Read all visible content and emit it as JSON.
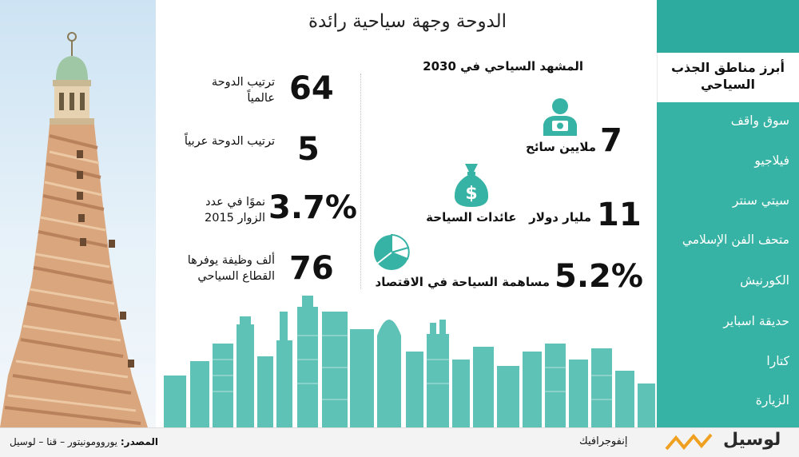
{
  "title": "الدوحة وجهة سياحية رائدة",
  "subtitle": "المشهد السياحي في 2030",
  "left_stats": [
    {
      "number": "64",
      "label": "ترتيب الدوحة عالمياً"
    },
    {
      "number": "5",
      "label": "ترتيب الدوحة عربياً"
    },
    {
      "number": "3.7%",
      "label": "نموًا في عدد الزوار 2015"
    },
    {
      "number": "76",
      "label": "ألف وظيفة يوفرها القطاع السياحي"
    }
  ],
  "outlook": [
    {
      "number": "7",
      "label": "ملايين سائح",
      "icon": "tourist-camera-icon"
    },
    {
      "number": "11",
      "label": "مليار دولار   عائدات السياحة",
      "icon": "money-bag-icon"
    },
    {
      "number": "5.2%",
      "label": "مساهمة السياحة في الاقتصاد",
      "icon": "pie-chart-icon"
    }
  ],
  "sidebar": {
    "heading": "أبرز مناطق الجذب السياحي",
    "items": [
      "سوق واقف",
      "فيلاجيو",
      "سيتي سنتر",
      "متحف الفن الإسلامي",
      "الكورنيش",
      "حديقة اسباير",
      "كتارا",
      "الزيارة"
    ]
  },
  "footer": {
    "source_label": "المصدر:",
    "source_text": "يوروومونيتور – قنا – لوسيل",
    "infographic": "إنفوجرافيك",
    "brand": "لوسيل"
  },
  "colors": {
    "teal": "#36b3a4",
    "teal_dark": "#2eab9f",
    "skyline": "#52bdb2",
    "accent": "#f0a020"
  }
}
